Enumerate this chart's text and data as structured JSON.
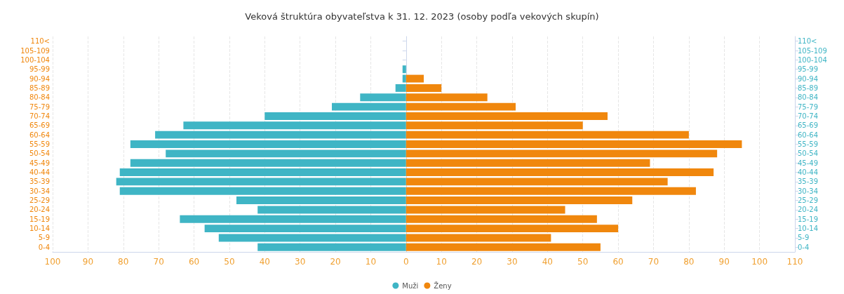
{
  "chart_data": {
    "type": "bar",
    "orientation": "horizontal",
    "stacked": true,
    "title": "Veková štruktúra obyvateľstva k 31. 12. 2023 (osoby podľa vekových skupín)",
    "categories": [
      "110<",
      "105-109",
      "100-104",
      "95-99",
      "90-94",
      "85-89",
      "80-84",
      "75-79",
      "70-74",
      "65-69",
      "60-64",
      "55-59",
      "50-54",
      "45-49",
      "40-44",
      "35-39",
      "30-34",
      "25-29",
      "20-24",
      "15-19",
      "10-14",
      "5-9",
      "0-4"
    ],
    "series": [
      {
        "name": "Muži",
        "color": "#3fb5c5",
        "values": [
          0,
          0,
          0,
          -1,
          -1,
          -3,
          -13,
          -21,
          -40,
          -63,
          -71,
          -78,
          -68,
          -78,
          -81,
          -82,
          -81,
          -48,
          -42,
          -64,
          -57,
          -53,
          -42
        ]
      },
      {
        "name": "Ženy",
        "color": "#f0870d",
        "values": [
          0,
          0,
          0,
          0,
          5,
          10,
          23,
          31,
          57,
          50,
          80,
          95,
          88,
          69,
          87,
          74,
          82,
          64,
          45,
          54,
          60,
          41,
          55
        ]
      }
    ],
    "xlim": [
      -100,
      110
    ],
    "xticks": [
      {
        "value": -100,
        "label": "100"
      },
      {
        "value": -90,
        "label": "90"
      },
      {
        "value": -80,
        "label": "80"
      },
      {
        "value": -70,
        "label": "70"
      },
      {
        "value": -60,
        "label": "60"
      },
      {
        "value": -50,
        "label": "50"
      },
      {
        "value": -40,
        "label": "40"
      },
      {
        "value": -30,
        "label": "30"
      },
      {
        "value": -20,
        "label": "20"
      },
      {
        "value": -10,
        "label": "10"
      },
      0,
      10,
      20,
      30,
      40,
      50,
      60,
      70,
      80,
      90,
      100,
      110
    ],
    "grid": "x",
    "legend": "bottom"
  }
}
